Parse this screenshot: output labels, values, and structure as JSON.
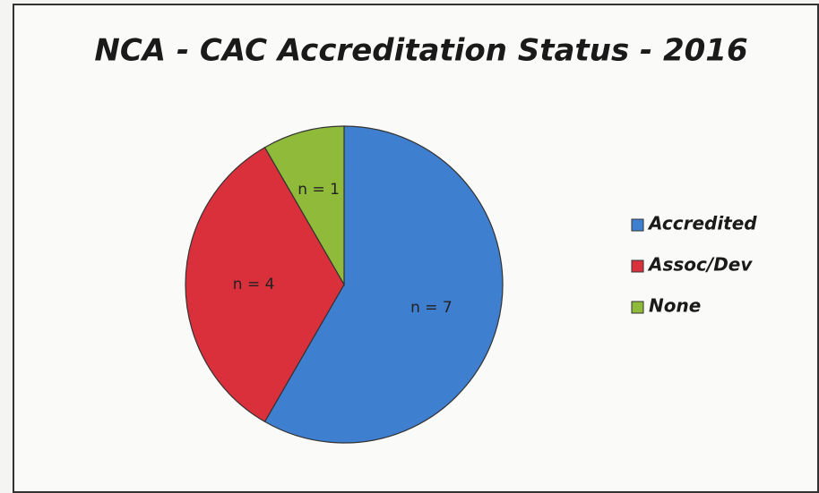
{
  "chart_data": {
    "type": "pie",
    "title": "NCA - CAC Accreditation Status - 2016",
    "categories": [
      "Accredited",
      "Assoc/Dev",
      "None"
    ],
    "values": [
      7,
      4,
      1
    ],
    "value_labels": [
      "n = 7",
      "n = 4",
      "n = 1"
    ],
    "colors": [
      "#3f7fd0",
      "#d9303c",
      "#8fba3a"
    ],
    "legend": "right"
  }
}
